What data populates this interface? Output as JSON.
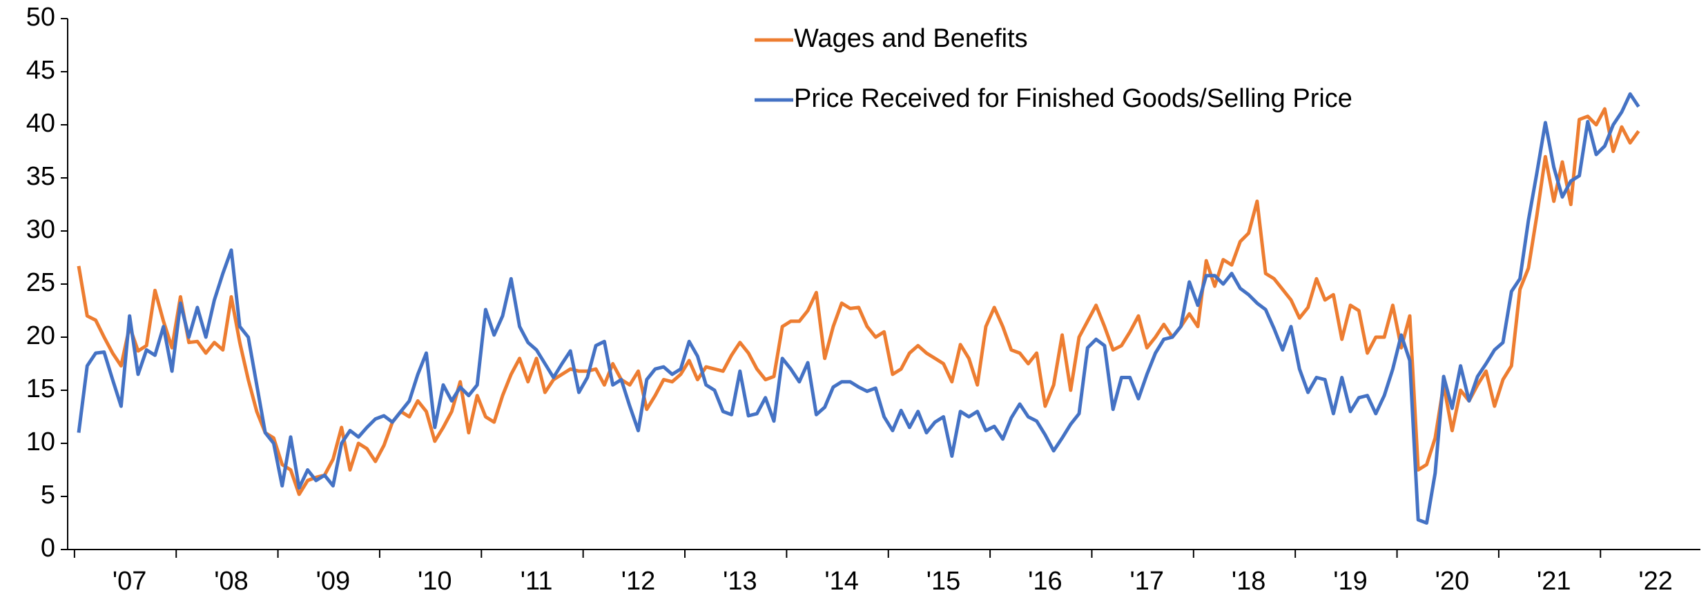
{
  "chart_data": {
    "type": "line",
    "categories": [
      null,
      null,
      null,
      null,
      null,
      null,
      "'07",
      null,
      null,
      null,
      null,
      null,
      null,
      null,
      null,
      null,
      null,
      null,
      "'08",
      null,
      null,
      null,
      null,
      null,
      null,
      null,
      null,
      null,
      null,
      null,
      "'09",
      null,
      null,
      null,
      null,
      null,
      null,
      null,
      null,
      null,
      null,
      null,
      "'10",
      null,
      null,
      null,
      null,
      null,
      null,
      null,
      null,
      null,
      null,
      null,
      "'11",
      null,
      null,
      null,
      null,
      null,
      null,
      null,
      null,
      null,
      null,
      null,
      "'12",
      null,
      null,
      null,
      null,
      null,
      null,
      null,
      null,
      null,
      null,
      null,
      "'13",
      null,
      null,
      null,
      null,
      null,
      null,
      null,
      null,
      null,
      null,
      null,
      "'14",
      null,
      null,
      null,
      null,
      null,
      null,
      null,
      null,
      null,
      null,
      null,
      "'15",
      null,
      null,
      null,
      null,
      null,
      null,
      null,
      null,
      null,
      null,
      null,
      "'16",
      null,
      null,
      null,
      null,
      null,
      null,
      null,
      null,
      null,
      null,
      null,
      "'17",
      null,
      null,
      null,
      null,
      null,
      null,
      null,
      null,
      null,
      null,
      null,
      "'18",
      null,
      null,
      null,
      null,
      null,
      null,
      null,
      null,
      null,
      null,
      null,
      "'19",
      null,
      null,
      null,
      null,
      null,
      null,
      null,
      null,
      null,
      null,
      null,
      "'20",
      null,
      null,
      null,
      null,
      null,
      null,
      null,
      null,
      null,
      null,
      null,
      "'21",
      null,
      null,
      null,
      null,
      null,
      null,
      null,
      null,
      null,
      null,
      null,
      "'22"
    ],
    "series": [
      {
        "name": "Wages and Benefits",
        "color": "#ed7d31",
        "values": [
          26.7,
          22,
          21.6,
          20,
          18.5,
          17.3,
          21,
          18.7,
          19.2,
          24.4,
          21.5,
          19,
          23.8,
          19.5,
          19.6,
          18.5,
          19.5,
          18.8,
          23.8,
          19.5,
          16,
          13,
          11,
          10.5,
          8,
          7.5,
          5.2,
          6.5,
          6.8,
          7,
          8.5,
          11.5,
          7.5,
          10,
          9.5,
          8.3,
          9.8,
          12,
          13,
          12.5,
          14,
          13,
          10.2,
          11.5,
          13,
          15.8,
          11,
          14.5,
          12.5,
          12,
          14.5,
          16.5,
          18,
          15.8,
          18,
          14.8,
          16,
          16.5,
          17,
          16.8,
          16.8,
          17,
          15.5,
          17.5,
          16,
          15.5,
          16.8,
          13.2,
          14.5,
          16,
          15.8,
          16.5,
          17.8,
          16,
          17.2,
          17,
          16.8,
          18.3,
          19.5,
          18.5,
          17,
          16,
          16.3,
          21,
          21.5,
          21.5,
          22.5,
          24.2,
          18,
          21,
          23.2,
          22.7,
          22.8,
          21,
          20,
          20.5,
          16.5,
          17,
          18.5,
          19.2,
          18.5,
          18,
          17.5,
          15.8,
          19.3,
          18,
          15.5,
          21,
          22.8,
          21,
          18.8,
          18.5,
          17.5,
          18.5,
          13.5,
          15.5,
          20.2,
          15,
          20,
          21.5,
          23,
          21,
          18.8,
          19.2,
          20.5,
          22,
          19,
          20,
          21.2,
          20,
          21,
          22.2,
          21,
          27.2,
          24.8,
          27.3,
          26.8,
          29,
          29.8,
          32.8,
          26,
          25.5,
          24.5,
          23.5,
          21.8,
          22.8,
          25.5,
          23.5,
          24,
          19.8,
          23,
          22.5,
          18.5,
          20,
          20,
          23,
          19,
          22,
          7.5,
          8,
          10.5,
          15.5,
          11.2,
          15,
          14,
          15.5,
          16.8,
          13.5,
          16,
          17.3,
          24.5,
          26.5,
          31.5,
          37,
          32.8,
          36.5,
          32.5,
          40.5,
          40.8,
          40,
          41.5,
          37.5,
          39.8,
          38.3,
          39.4,
          null,
          null
        ]
      },
      {
        "name": "Price Received for Finished Goods/Selling Price",
        "color": "#4472c4",
        "values": [
          11,
          17.3,
          18.5,
          18.6,
          16,
          13.5,
          22,
          16.5,
          18.8,
          18.3,
          21,
          16.8,
          23.2,
          20,
          22.8,
          20,
          23.5,
          26,
          28.2,
          21,
          20,
          15.5,
          11,
          10,
          6,
          10.6,
          5.8,
          7.5,
          6.5,
          7,
          6,
          10,
          11.2,
          10.6,
          11.5,
          12.3,
          12.6,
          12,
          13,
          14,
          16.5,
          18.5,
          11.5,
          15.5,
          14,
          15.3,
          14.5,
          15.5,
          22.6,
          20.2,
          22,
          25.5,
          21,
          19.5,
          18.8,
          17.5,
          16.2,
          17.5,
          18.7,
          14.8,
          16.2,
          19.2,
          19.6,
          15.5,
          16,
          13.5,
          11.2,
          16,
          17,
          17.2,
          16.5,
          17,
          19.6,
          18.2,
          15.5,
          15,
          13,
          12.7,
          16.8,
          12.6,
          12.8,
          14.3,
          12.1,
          18,
          17,
          15.8,
          17.6,
          12.7,
          13.4,
          15.3,
          15.8,
          15.8,
          15.3,
          14.9,
          15.2,
          12.5,
          11.2,
          13.1,
          11.5,
          13,
          11,
          12,
          12.5,
          8.8,
          13,
          12.5,
          13,
          11.2,
          11.6,
          10.4,
          12.4,
          13.7,
          12.5,
          12.1,
          10.8,
          9.3,
          10.5,
          11.8,
          12.8,
          19,
          19.8,
          19.2,
          13.2,
          16.2,
          16.2,
          14.2,
          16.5,
          18.5,
          19.8,
          20,
          21,
          25.2,
          23,
          25.8,
          25.8,
          25,
          26,
          24.6,
          24,
          23.2,
          22.6,
          20.8,
          18.8,
          21,
          17,
          14.8,
          16.2,
          16,
          12.8,
          16.2,
          13,
          14.3,
          14.5,
          12.8,
          14.5,
          17,
          20.2,
          17.8,
          2.8,
          2.5,
          7.2,
          16.3,
          13.3,
          17.3,
          14,
          16.3,
          17.5,
          18.8,
          19.5,
          24.3,
          25.5,
          31,
          35.5,
          40.2,
          36,
          33.2,
          34.7,
          35.2,
          40.3,
          37.2,
          38,
          40,
          41.2,
          42.9,
          41.7,
          null,
          null
        ]
      }
    ],
    "ylim": [
      0,
      50
    ],
    "yticks": [
      0,
      5,
      10,
      15,
      20,
      25,
      30,
      35,
      40,
      45,
      50
    ],
    "grid": false,
    "legend": "top"
  }
}
